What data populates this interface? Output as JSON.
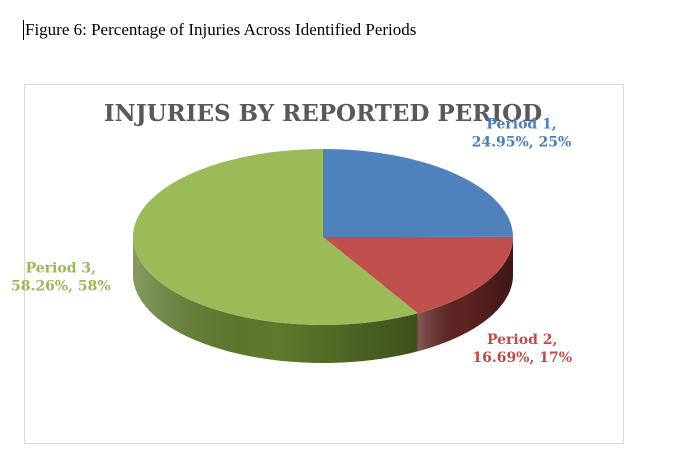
{
  "caption": "Figure 6: Percentage of Injuries Across Identified Periods",
  "chart_data": {
    "type": "pie",
    "title": "INJURIES BY REPORTED PERIOD",
    "style": "3d",
    "slices": [
      {
        "name": "Period 1",
        "value": 24.95,
        "label_line1": "Period 1,",
        "label_line2": "24.95%, 25%",
        "color": "#4f81bd",
        "side_color": "#2e4f77",
        "label_color": "#4a7ebb"
      },
      {
        "name": "Period 2",
        "value": 16.69,
        "label_line1": "Period 2,",
        "label_line2": "16.69%, 17%",
        "color": "#c0504d",
        "side_color": "#5e2321",
        "label_color": "#be4b48"
      },
      {
        "name": "Period 3",
        "value": 58.26,
        "label_line1": "Period 3,",
        "label_line2": "58.26%, 58%",
        "color": "#9bbb59",
        "side_color": "#5f7a2c",
        "label_color": "#98b954"
      }
    ],
    "title_color": "#595959"
  }
}
